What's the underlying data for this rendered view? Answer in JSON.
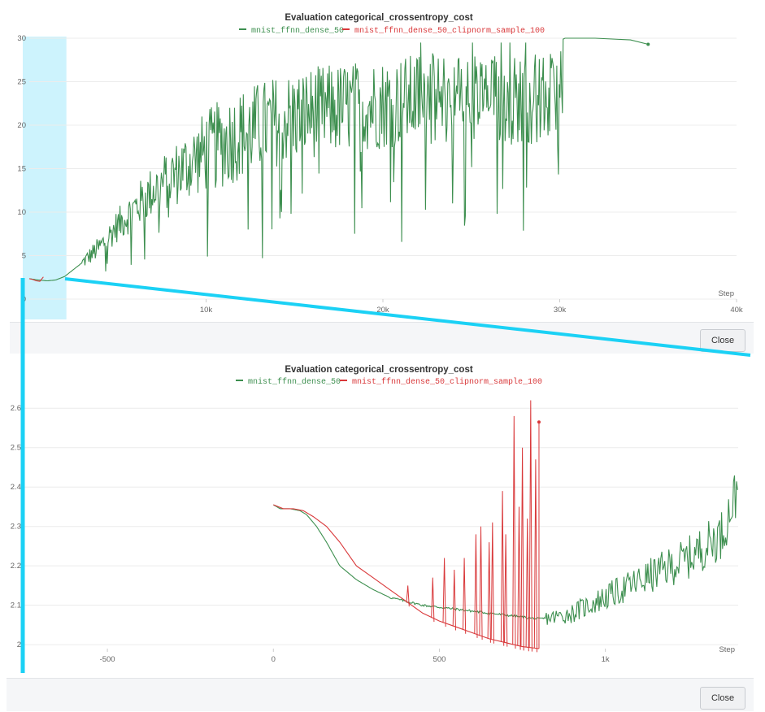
{
  "colors": {
    "green": "#3d8f4f",
    "red": "#d9383a",
    "highlight": "#cdf3fd",
    "zoom_line": "#1bd1f5",
    "grid": "#ececec",
    "axis_text": "#666666",
    "footer_bg": "#f5f6f8"
  },
  "chart_data": [
    {
      "type": "line",
      "title": "Evaluation categorical_crossentropy_cost",
      "xlabel": "Step",
      "ylabel": "",
      "xlim": [
        0,
        40000
      ],
      "ylim": [
        0,
        30
      ],
      "x_ticks": [
        10000,
        20000,
        30000,
        40000
      ],
      "x_tick_labels": [
        "10k",
        "20k",
        "30k",
        "40k"
      ],
      "y_ticks": [
        0,
        5,
        10,
        15,
        20,
        25,
        30
      ],
      "y_tick_labels": [
        "0",
        "5",
        "10",
        "15",
        "20",
        "25",
        "30"
      ],
      "grid": true,
      "legend": "top-center",
      "highlight_region": [
        -400,
        2100
      ],
      "series": [
        {
          "name": "mnist_ffnn_dense_50",
          "color": "green",
          "noisy_from": 3000,
          "x": [
            0,
            500,
            1000,
            1500,
            2000,
            3000,
            4000,
            5000,
            6000,
            7000,
            8000,
            9000,
            10000,
            12000,
            14000,
            16000,
            18000,
            20000,
            22000,
            24000,
            26000,
            28000,
            30000,
            30300,
            32000,
            34000,
            35000
          ],
          "y": [
            2.35,
            2.2,
            2.1,
            2.2,
            2.6,
            4.2,
            6.0,
            8.5,
            10.5,
            12.5,
            14.0,
            15.5,
            17.0,
            19.0,
            20.5,
            21.5,
            22.0,
            22.5,
            23.0,
            23.0,
            23.0,
            23.0,
            23.0,
            30.0,
            30.0,
            29.8,
            29.3
          ]
        },
        {
          "name": "mnist_ffnn_dense_50_clipnorm_sample_100",
          "color": "red",
          "x": [
            0,
            200,
            400,
            600,
            800
          ],
          "y": [
            2.35,
            2.25,
            2.1,
            2.05,
            2.55
          ]
        }
      ]
    },
    {
      "type": "line",
      "title": "Evaluation categorical_crossentropy_cost",
      "xlabel": "Step",
      "ylabel": "",
      "xlim": [
        -750,
        1400
      ],
      "ylim": [
        1.99,
        2.65
      ],
      "x_ticks": [
        -500,
        0,
        500,
        1000
      ],
      "x_tick_labels": [
        "-500",
        "0",
        "500",
        "1k"
      ],
      "y_ticks": [
        2,
        2.1,
        2.2,
        2.3,
        2.4,
        2.5,
        2.6
      ],
      "y_tick_labels": [
        "2",
        "2.1",
        "2.2",
        "2.3",
        "2.4",
        "2.5",
        "2.6"
      ],
      "grid": true,
      "legend": "top-center",
      "series": [
        {
          "name": "mnist_ffnn_dense_50",
          "color": "green",
          "noisy_from": 820,
          "x": [
            0,
            20,
            50,
            80,
            100,
            130,
            160,
            200,
            250,
            300,
            350,
            400,
            450,
            500,
            550,
            600,
            650,
            700,
            750,
            800,
            850,
            900,
            950,
            1000,
            1050,
            1100,
            1150,
            1200,
            1250,
            1300,
            1350,
            1400
          ],
          "y": [
            2.355,
            2.345,
            2.345,
            2.34,
            2.33,
            2.3,
            2.26,
            2.2,
            2.165,
            2.14,
            2.12,
            2.11,
            2.1,
            2.095,
            2.09,
            2.085,
            2.08,
            2.075,
            2.07,
            2.065,
            2.07,
            2.08,
            2.1,
            2.12,
            2.14,
            2.16,
            2.18,
            2.2,
            2.22,
            2.25,
            2.28,
            2.4
          ]
        },
        {
          "name": "mnist_ffnn_dense_50_clipnorm_sample_100",
          "color": "red",
          "end_marker_value": 2.565,
          "x": [
            0,
            30,
            60,
            90,
            120,
            160,
            200,
            250,
            300,
            350,
            400,
            450,
            500,
            550,
            600,
            650,
            700,
            750,
            800
          ],
          "y": [
            2.355,
            2.345,
            2.345,
            2.34,
            2.325,
            2.3,
            2.26,
            2.2,
            2.17,
            2.14,
            2.11,
            2.08,
            2.06,
            2.045,
            2.03,
            2.015,
            2.005,
            1.995,
            1.99
          ],
          "spikes": [
            {
              "x": 405,
              "y": 2.15
            },
            {
              "x": 480,
              "y": 2.17
            },
            {
              "x": 515,
              "y": 2.22
            },
            {
              "x": 545,
              "y": 2.19
            },
            {
              "x": 575,
              "y": 2.22
            },
            {
              "x": 610,
              "y": 2.28
            },
            {
              "x": 625,
              "y": 2.3
            },
            {
              "x": 650,
              "y": 2.26
            },
            {
              "x": 660,
              "y": 2.31
            },
            {
              "x": 690,
              "y": 2.39
            },
            {
              "x": 700,
              "y": 2.28
            },
            {
              "x": 725,
              "y": 2.58
            },
            {
              "x": 740,
              "y": 2.35
            },
            {
              "x": 750,
              "y": 2.5
            },
            {
              "x": 765,
              "y": 2.32
            },
            {
              "x": 775,
              "y": 2.62
            },
            {
              "x": 790,
              "y": 2.47
            }
          ]
        }
      ]
    }
  ],
  "buttons": {
    "close_top": "Close",
    "close_bottom": "Close"
  }
}
